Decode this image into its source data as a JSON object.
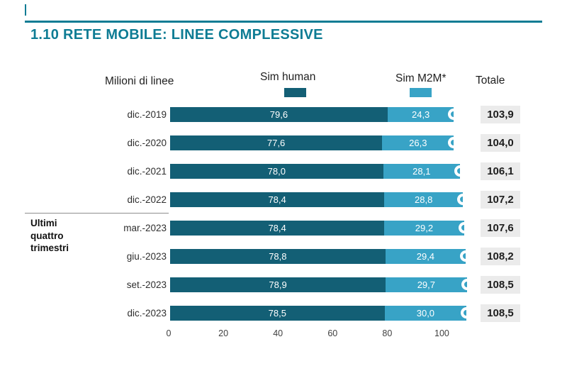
{
  "page": {
    "title": "1.10 RETE MOBILE: LINEE COMPLESSIVE",
    "accent_color": "#0e7c94"
  },
  "chart_data": {
    "type": "bar",
    "orientation": "horizontal",
    "title": "1.10 RETE MOBILE: LINEE COMPLESSIVE",
    "unit_label": "Milioni di linee",
    "totale_header": "Totale",
    "group_label": "Ultimi\nquattro\ntrimestri",
    "legend_position": "top",
    "grid": false,
    "xlim": [
      0,
      110
    ],
    "x_ticks": [
      0,
      20,
      40,
      60,
      80,
      100
    ],
    "categories": [
      "dic.-2019",
      "dic.-2020",
      "dic.-2021",
      "dic.-2022",
      "mar.-2023",
      "giu.-2023",
      "set.-2023",
      "dic.-2023"
    ],
    "series": [
      {
        "name": "Sim human",
        "color": "#135f75",
        "values": [
          79.6,
          77.6,
          78.0,
          78.4,
          78.4,
          78.8,
          78.9,
          78.5
        ]
      },
      {
        "name": "Sim M2M*",
        "color": "#38a3c6",
        "values": [
          24.3,
          26.3,
          28.1,
          28.8,
          29.2,
          29.4,
          29.7,
          30.0
        ]
      }
    ],
    "totals": [
      103.9,
      104.0,
      106.1,
      107.2,
      107.6,
      108.2,
      108.5,
      108.5
    ],
    "rows": [
      {
        "category": "dic.-2019",
        "human_label": "79,6",
        "m2m_label": "24,3",
        "total_label": "103,9"
      },
      {
        "category": "dic.-2020",
        "human_label": "77,6",
        "m2m_label": "26,3",
        "total_label": "104,0"
      },
      {
        "category": "dic.-2021",
        "human_label": "78,0",
        "m2m_label": "28,1",
        "total_label": "106,1"
      },
      {
        "category": "dic.-2022",
        "human_label": "78,4",
        "m2m_label": "28,8",
        "total_label": "107,2"
      },
      {
        "category": "mar.-2023",
        "human_label": "78,4",
        "m2m_label": "29,2",
        "total_label": "107,6"
      },
      {
        "category": "giu.-2023",
        "human_label": "78,8",
        "m2m_label": "29,4",
        "total_label": "108,2"
      },
      {
        "category": "set.-2023",
        "human_label": "78,9",
        "m2m_label": "29,7",
        "total_label": "108,5"
      },
      {
        "category": "dic.-2023",
        "human_label": "78,5",
        "m2m_label": "30,0",
        "total_label": "108,5"
      }
    ]
  }
}
